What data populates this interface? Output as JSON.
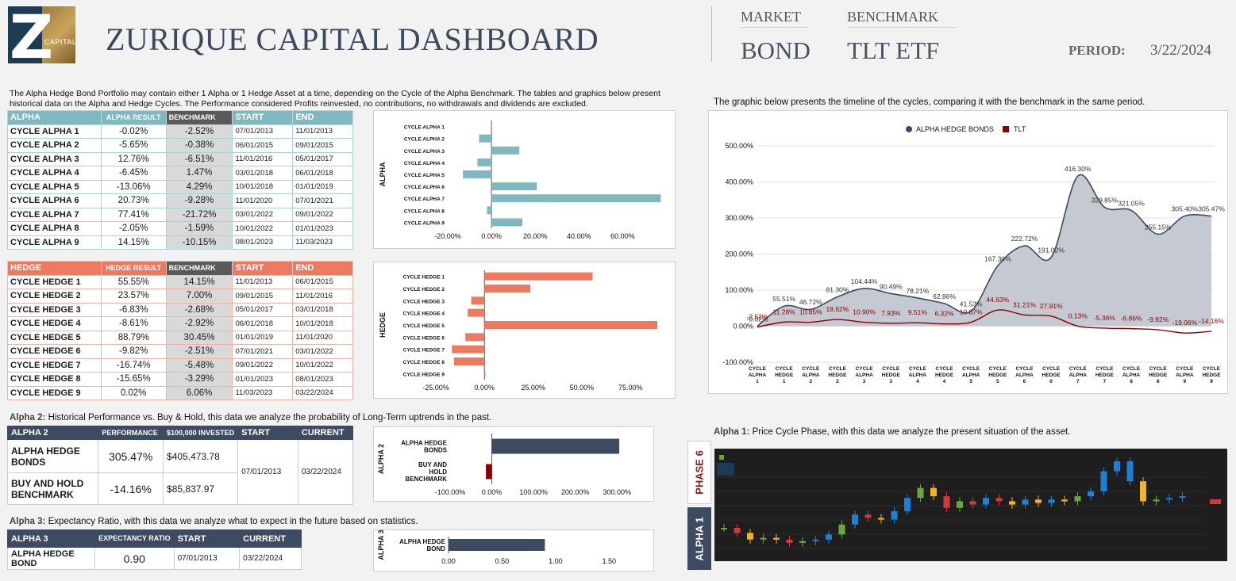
{
  "header": {
    "logo_letter": "Z",
    "logo_text": "CAPITAL",
    "title": "ZURIQUE CAPITAL DASHBOARD",
    "market_label": "MARKET",
    "market_value": "BOND",
    "benchmark_label": "BENCHMARK",
    "benchmark_value": "TLT ETF",
    "period_label": "PERIOD:",
    "period_value": "3/22/2024"
  },
  "intro_text": "The Alpha Hedge Bond Portfolio may contain either 1 Alpha or 1 Hedge Asset at a time, depending on the Cycle of the Alpha Benchmark. The tables and graphics below present historical data on the Alpha and Hedge Cycles. The Performance considered Profits reinvested, no contributions, no withdrawals and dividends are excluded.",
  "timeline_caption": "The graphic below presents the timeline of the cycles, comparing it with the benchmark in the same period.",
  "colors": {
    "alpha": "#7fb9bf",
    "hedge": "#ec7a60",
    "navy": "#3d4b62",
    "tlt": "#8b0000",
    "area": "#c5c9d1"
  },
  "alpha_table": {
    "headers": [
      "ALPHA",
      "ALPHA RESULT",
      "BENCHMARK",
      "START",
      "END"
    ],
    "rows": [
      {
        "name": "CYCLE ALPHA 1",
        "result": "-0.02%",
        "benchmark": "-2.52%",
        "start": "07/01/2013",
        "end": "11/01/2013"
      },
      {
        "name": "CYCLE ALPHA 2",
        "result": "-5.65%",
        "benchmark": "-0.38%",
        "start": "06/01/2015",
        "end": "09/01/2015"
      },
      {
        "name": "CYCLE ALPHA 3",
        "result": "12.76%",
        "benchmark": "-6.51%",
        "start": "11/01/2016",
        "end": "05/01/2017"
      },
      {
        "name": "CYCLE ALPHA 4",
        "result": "-6.45%",
        "benchmark": "1.47%",
        "start": "03/01/2018",
        "end": "06/01/2018"
      },
      {
        "name": "CYCLE ALPHA 5",
        "result": "-13.06%",
        "benchmark": "4.29%",
        "start": "10/01/2018",
        "end": "01/01/2019"
      },
      {
        "name": "CYCLE ALPHA 6",
        "result": "20.73%",
        "benchmark": "-9.28%",
        "start": "11/01/2020",
        "end": "07/01/2021"
      },
      {
        "name": "CYCLE ALPHA 7",
        "result": "77.41%",
        "benchmark": "-21.72%",
        "start": "03/01/2022",
        "end": "09/01/2022"
      },
      {
        "name": "CYCLE ALPHA 8",
        "result": "-2.05%",
        "benchmark": "-1.59%",
        "start": "10/01/2022",
        "end": "01/01/2023"
      },
      {
        "name": "CYCLE ALPHA 9",
        "result": "14.15%",
        "benchmark": "-10.15%",
        "start": "08/01/2023",
        "end": "11/03/2023"
      }
    ]
  },
  "hedge_table": {
    "headers": [
      "HEDGE",
      "HEDGE RESULT",
      "BENCHMARK",
      "START",
      "END"
    ],
    "rows": [
      {
        "name": "CYCLE HEDGE 1",
        "result": "55.55%",
        "benchmark": "14.15%",
        "start": "11/01/2013",
        "end": "06/01/2015"
      },
      {
        "name": "CYCLE HEDGE 2",
        "result": "23.57%",
        "benchmark": "7.00%",
        "start": "09/01/2015",
        "end": "11/01/2016"
      },
      {
        "name": "CYCLE HEDGE 3",
        "result": "-6.83%",
        "benchmark": "-2.68%",
        "start": "05/01/2017",
        "end": "03/01/2018"
      },
      {
        "name": "CYCLE HEDGE 4",
        "result": "-8.61%",
        "benchmark": "-2.92%",
        "start": "06/01/2018",
        "end": "10/01/2018"
      },
      {
        "name": "CYCLE HEDGE 5",
        "result": "88.79%",
        "benchmark": "30.45%",
        "start": "01/01/2019",
        "end": "11/01/2020"
      },
      {
        "name": "CYCLE HEDGE 6",
        "result": "-9.82%",
        "benchmark": "-2.51%",
        "start": "07/01/2021",
        "end": "03/01/2022"
      },
      {
        "name": "CYCLE HEDGE 7",
        "result": "-16.74%",
        "benchmark": "-5.48%",
        "start": "09/01/2022",
        "end": "10/01/2022"
      },
      {
        "name": "CYCLE HEDGE 8",
        "result": "-15.65%",
        "benchmark": "-3.29%",
        "start": "01/01/2023",
        "end": "08/01/2023"
      },
      {
        "name": "CYCLE HEDGE 9",
        "result": "0.02%",
        "benchmark": "6.06%",
        "start": "11/03/2023",
        "end": "03/22/2024"
      }
    ]
  },
  "alpha2": {
    "caption_bold": "Alpha 2:",
    "caption": " Historical Performance vs. Buy & Hold, this data we analyze the probability of Long-Term uptrends in the past.",
    "headers": [
      "ALPHA 2",
      "PERFORMANCE",
      "$100,000 INVESTED",
      "START",
      "CURRENT"
    ],
    "rows": [
      {
        "name": "ALPHA HEDGE BONDS",
        "performance": "305.47%",
        "invested": "$405,473.78"
      },
      {
        "name": "BUY AND HOLD BENCHMARK",
        "performance": "-14.16%",
        "invested": "$85,837.97"
      }
    ],
    "start": "07/01/2013",
    "current": "03/22/2024"
  },
  "alpha3": {
    "caption_bold": "Alpha 3:",
    "caption": " Expectancy Ratio, with this data we analyze what to expect in the future based on statistics.",
    "headers": [
      "ALPHA 3",
      "EXPECTANCY RATIO",
      "START",
      "CURRENT"
    ],
    "row": {
      "name": "ALPHA HEDGE BOND",
      "ratio": "0.90",
      "start": "07/01/2013",
      "current": "03/22/2024"
    }
  },
  "alpha1": {
    "caption_bold": "Alpha 1:",
    "caption": " Price Cycle Phase, with this data we analyze the present situation of the asset.",
    "phase_label": "PHASE 6",
    "side_label": "ALPHA 1"
  },
  "chart_data": [
    {
      "type": "bar",
      "orientation": "horizontal",
      "ylabel": "ALPHA",
      "categories": [
        "CYCLE ALPHA 1",
        "CYCLE ALPHA 2",
        "CYCLE ALPHA 3",
        "CYCLE ALPHA 4",
        "CYCLE ALPHA 5",
        "CYCLE ALPHA 6",
        "CYCLE ALPHA 7",
        "CYCLE ALPHA 8",
        "CYCLE ALPHA 9"
      ],
      "values": [
        -0.02,
        -5.65,
        12.76,
        -6.45,
        -13.06,
        20.73,
        77.41,
        -2.05,
        14.15
      ],
      "ticks": [
        "-20.00%",
        "0.00%",
        "20.00%",
        "40.00%",
        "60.00%"
      ],
      "xlim": [
        -20,
        78
      ]
    },
    {
      "type": "bar",
      "orientation": "horizontal",
      "ylabel": "HEDGE",
      "categories": [
        "CYCLE HEDGE 1",
        "CYCLE HEDGE 2",
        "CYCLE HEDGE 3",
        "CYCLE HEDGE 4",
        "CYCLE HEDGE 5",
        "CYCLE HEDGE 6",
        "CYCLE HEDGE 7",
        "CYCLE HEDGE 8",
        "CYCLE HEDGE 9"
      ],
      "values": [
        55.55,
        23.57,
        -6.83,
        -8.61,
        88.79,
        -9.82,
        -16.74,
        -15.65,
        0.02
      ],
      "ticks": [
        "-25.00%",
        "0.00%",
        "25.00%",
        "50.00%",
        "75.00%"
      ],
      "xlim": [
        -25,
        90
      ]
    },
    {
      "type": "bar",
      "orientation": "horizontal",
      "ylabel": "ALPHA 2",
      "categories": [
        "ALPHA HEDGE BONDS",
        "BUY AND HOLD BENCHMARK"
      ],
      "values": [
        305.47,
        -14.16
      ],
      "ticks": [
        "-100.00%",
        "0.00%",
        "100.00%",
        "200.00%",
        "300.00%"
      ],
      "xlim": [
        -100,
        330
      ]
    },
    {
      "type": "bar",
      "orientation": "horizontal",
      "ylabel": "ALPHA 3",
      "categories": [
        "ALPHA HEDGE BOND"
      ],
      "values": [
        0.9
      ],
      "ticks": [
        "0.00",
        "0.50",
        "1.00",
        "1.50"
      ],
      "xlim": [
        0,
        1.75
      ]
    },
    {
      "type": "area",
      "legend": [
        "ALPHA HEDGE BONDS",
        "TLT"
      ],
      "legend_placement": "top",
      "categories": [
        "CYCLE ALPHA 1",
        "CYCLE HEDGE 1",
        "CYCLE ALPHA 2",
        "CYCLE HEDGE 2",
        "CYCLE ALPHA 3",
        "CYCLE HEDGE 3",
        "CYCLE ALPHA 4",
        "CYCLE HEDGE 4",
        "CYCLE ALPHA 5",
        "CYCLE HEDGE 5",
        "CYCLE ALPHA 6",
        "CYCLE HEDGE 6",
        "CYCLE ALPHA 7",
        "CYCLE HEDGE 7",
        "CYCLE ALPHA 8",
        "CYCLE HEDGE 8",
        "CYCLE ALPHA 9",
        "CYCLE HEDGE 9"
      ],
      "series": [
        {
          "name": "ALPHA HEDGE BONDS",
          "values": [
            -0.02,
            55.51,
            46.72,
            81.3,
            104.44,
            90.49,
            78.21,
            62.86,
            41.53,
            167.3,
            222.72,
            191.02,
            416.3,
            329.85,
            321.05,
            255.15,
            305.4,
            305.47
          ],
          "labels": [
            "-0.02%",
            "55.51%",
            "46.72%",
            "81.30%",
            "104.44%",
            "90.49%",
            "78.21%",
            "62.86%",
            "41.53%",
            "167.30%",
            "222.72%",
            "191.02%",
            "416.30%",
            "329.85%",
            "321.05%",
            "255.15%",
            "305.40%",
            "305.47%"
          ]
        },
        {
          "name": "TLT",
          "values": [
            -2.52,
            11.28,
            10.85,
            18.62,
            10.9,
            7.93,
            9.51,
            6.32,
            10.87,
            44.63,
            31.21,
            27.91,
            0.13,
            -5.36,
            -6.86,
            -9.92,
            -19.06,
            -14.16
          ],
          "labels": [
            "-2.52%",
            "11.28%",
            "10.85%",
            "18.62%",
            "10.90%",
            "7.93%",
            "9.51%",
            "6.32%",
            "10.87%",
            "44.63%",
            "31.21%",
            "27.91%",
            "0.13%",
            "-5.36%",
            "-6.86%",
            "-9.92%",
            "-19.06%",
            "-14.16%"
          ]
        }
      ],
      "ticks": [
        "500.00%",
        "400.00%",
        "300.00%",
        "200.00%",
        "100.00%",
        "0.00%",
        "-100.00%"
      ],
      "ylim": [
        -100,
        500
      ],
      "grid": true
    }
  ]
}
